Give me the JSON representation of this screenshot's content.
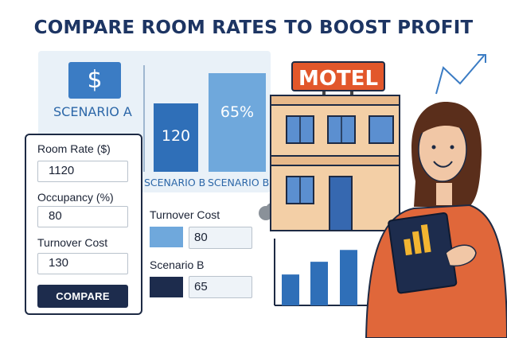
{
  "title": "COMPARE ROOM RATES TO BOOST PROFIT",
  "scenario_panel": {
    "icon": "dollar-icon",
    "icon_glyph": "$",
    "label": "SCENARIO A"
  },
  "chart_data": {
    "type": "bar",
    "categories": [
      "SCENARIO B",
      "SCENARIO B"
    ],
    "values": [
      120,
      65
    ],
    "data_labels": [
      "120",
      "65%"
    ],
    "colors": [
      "#2f6fb8",
      "#6fa8dc"
    ]
  },
  "form": {
    "fields": [
      {
        "label": "Room Rate ($)",
        "value": "1120"
      },
      {
        "label": "Occupancy (%)",
        "value": "80"
      },
      {
        "label": "Turnover Cost",
        "value": "130"
      }
    ],
    "button_label": "COMPARE"
  },
  "legend": [
    {
      "label": "Turnover Cost",
      "value": "80",
      "color": "#6fa8dc"
    },
    {
      "label": "Scenario B",
      "value": "65",
      "color": "#1d2c4d"
    }
  ],
  "motel_sign": "MOTEL",
  "colors": {
    "navy": "#1d2c4d",
    "blue": "#2f6fb8",
    "light_blue": "#6fa8dc",
    "sign_orange": "#e2572b",
    "sweater": "#e0673a"
  },
  "bottom_chart": {
    "values": [
      34,
      48,
      61
    ]
  }
}
